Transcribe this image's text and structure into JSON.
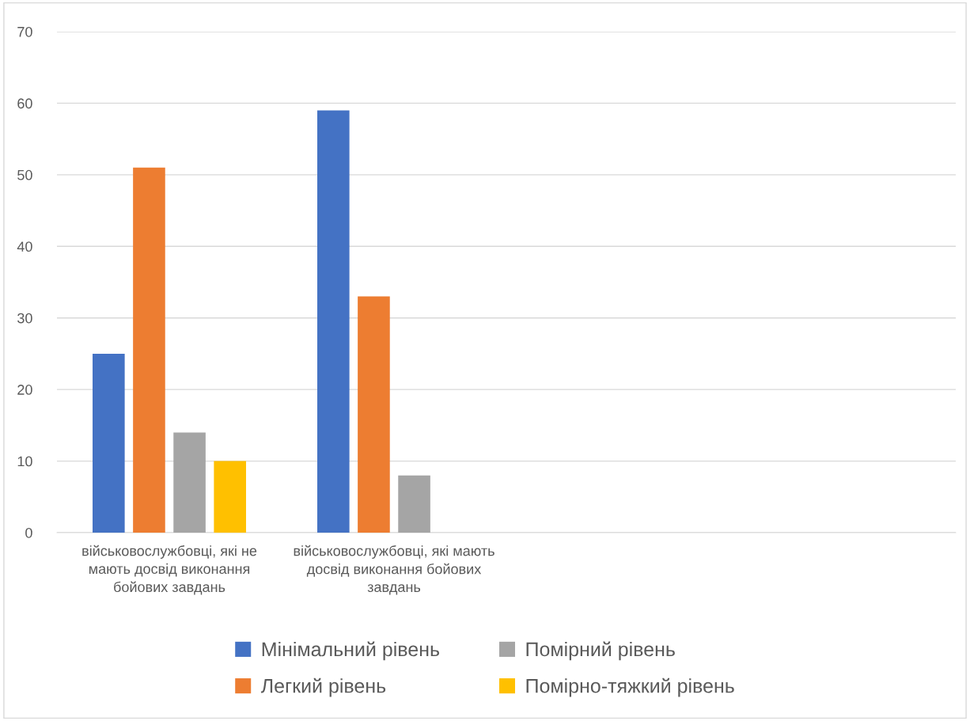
{
  "chart_data": {
    "type": "bar",
    "categories": [
      "військовослужбовці, які не мають досвід виконання бойових завдань",
      "військовослужбовці, які мають досвід виконання бойових завдань",
      null,
      null
    ],
    "series": [
      {
        "name": "Мінімальний рівень",
        "color": "#4472c4",
        "values": [
          25,
          59,
          null,
          null
        ]
      },
      {
        "name": "Легкий рівень",
        "color": "#ed7d31",
        "values": [
          51,
          33,
          null,
          null
        ]
      },
      {
        "name": "Помірний рівень",
        "color": "#a5a5a5",
        "values": [
          14,
          8,
          null,
          null
        ]
      },
      {
        "name": "Помірно-тяжкий рівень",
        "color": "#ffc000",
        "values": [
          10,
          null,
          null,
          null
        ]
      }
    ],
    "ylim": [
      0,
      70
    ],
    "yticks": [
      0,
      10,
      20,
      30,
      40,
      50,
      60,
      70
    ],
    "grid": "y",
    "legend": "bottom"
  }
}
